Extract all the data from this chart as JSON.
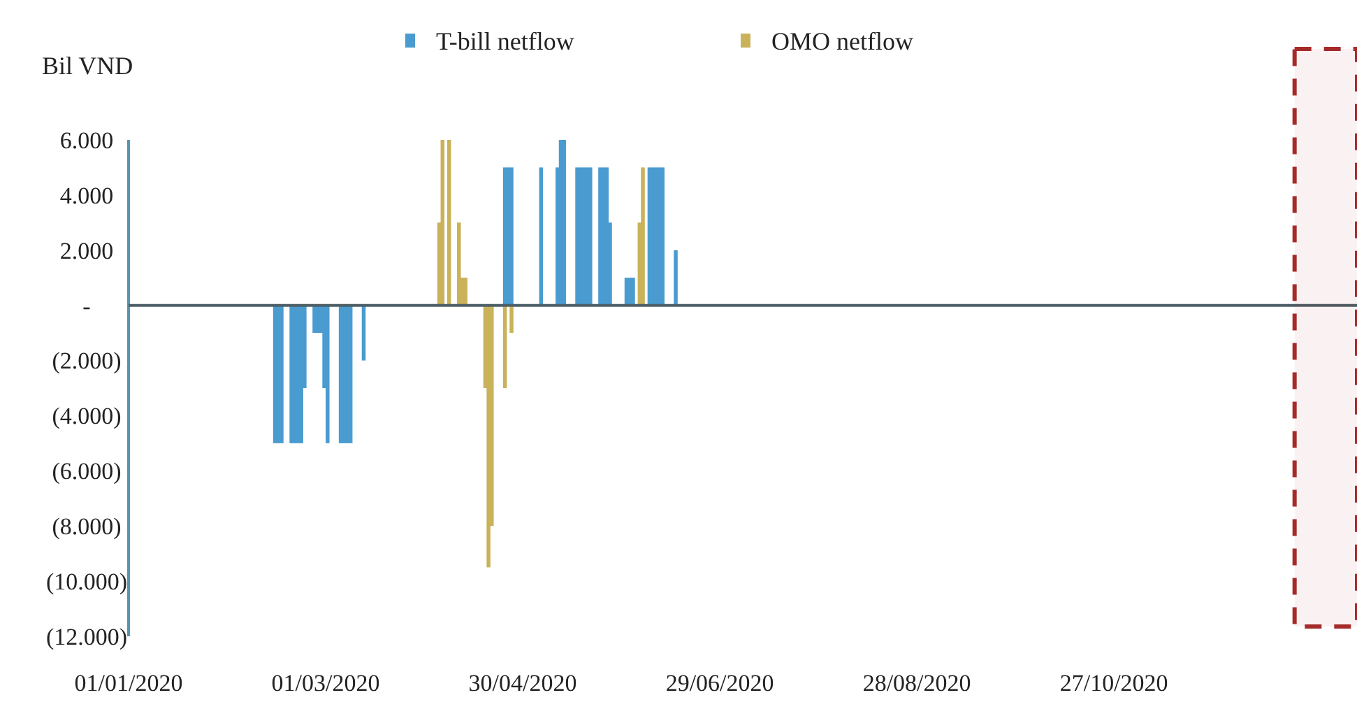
{
  "chart_data": {
    "type": "bar",
    "ylabel": "Bil VND",
    "legend": "top",
    "xlim": [
      "2020-01-01",
      "2021-01-09"
    ],
    "xticks": [
      {
        "value": "2020-01-01",
        "label": "01/01/2020"
      },
      {
        "value": "2020-03-01",
        "label": "01/03/2020"
      },
      {
        "value": "2020-04-30",
        "label": "30/04/2020"
      },
      {
        "value": "2020-06-29",
        "label": "29/06/2020"
      },
      {
        "value": "2020-08-28",
        "label": "28/08/2020"
      },
      {
        "value": "2020-10-27",
        "label": "27/10/2020"
      }
    ],
    "ylim": [
      -12000,
      6000
    ],
    "bands": [
      {
        "axis": "x",
        "from": "2020-12-21",
        "to": "2021-01-09",
        "color": "#a52a2a"
      }
    ],
    "yticks": [
      {
        "value": 6000,
        "label": "6.000"
      },
      {
        "value": 4000,
        "label": "4.000"
      },
      {
        "value": 2000,
        "label": "2.000"
      },
      {
        "value": 0,
        "label": "-"
      },
      {
        "value": -2000,
        "label": "(2.000)"
      },
      {
        "value": -4000,
        "label": "(4.000)"
      },
      {
        "value": -6000,
        "label": "(6.000)"
      },
      {
        "value": -8000,
        "label": "(8.000)"
      },
      {
        "value": -10000,
        "label": "(10.000)"
      },
      {
        "value": -12000,
        "label": "(12.000)"
      }
    ],
    "series": [
      {
        "name": "T-bill netflow",
        "color": "#4a9bd0",
        "x": [
          "2020-02-14",
          "2020-02-15",
          "2020-02-16",
          "2020-02-19",
          "2020-02-20",
          "2020-02-21",
          "2020-02-22",
          "2020-02-23",
          "2020-02-26",
          "2020-02-27",
          "2020-02-28",
          "2020-02-29",
          "2020-03-01",
          "2020-03-05",
          "2020-03-06",
          "2020-03-07",
          "2020-03-08",
          "2020-03-12",
          "2020-04-24",
          "2020-04-25",
          "2020-04-26",
          "2020-05-05",
          "2020-05-10",
          "2020-05-11",
          "2020-05-12",
          "2020-05-16",
          "2020-05-17",
          "2020-05-18",
          "2020-05-19",
          "2020-05-20",
          "2020-05-23",
          "2020-05-24",
          "2020-05-25",
          "2020-05-26",
          "2020-05-31",
          "2020-06-01",
          "2020-06-02",
          "2020-06-07",
          "2020-06-08",
          "2020-06-09",
          "2020-06-10",
          "2020-06-11",
          "2020-06-15"
        ],
        "values": [
          -5000,
          -5000,
          -5000,
          -5000,
          -5000,
          -5000,
          -5000,
          -3000,
          -1000,
          -1000,
          -1000,
          -3000,
          -5000,
          -5000,
          -5000,
          -5000,
          -5000,
          -2000,
          5000,
          5000,
          5000,
          5000,
          5000,
          6000,
          6000,
          5000,
          5000,
          5000,
          5000,
          5000,
          5000,
          5000,
          5000,
          3000,
          1000,
          1000,
          1000,
          5000,
          5000,
          5000,
          5000,
          5000,
          2000
        ]
      },
      {
        "name": "OMO netflow",
        "color": "#c9b25a",
        "x": [
          "2020-04-04",
          "2020-04-05",
          "2020-04-07",
          "2020-04-10",
          "2020-04-11",
          "2020-04-12",
          "2020-04-18",
          "2020-04-19",
          "2020-04-20",
          "2020-04-24",
          "2020-04-26",
          "2020-06-04",
          "2020-06-05"
        ],
        "values": [
          3000,
          6000,
          6000,
          3000,
          1000,
          1000,
          -3000,
          -9500,
          -8000,
          -3000,
          -1000,
          3000,
          5000
        ]
      }
    ]
  }
}
